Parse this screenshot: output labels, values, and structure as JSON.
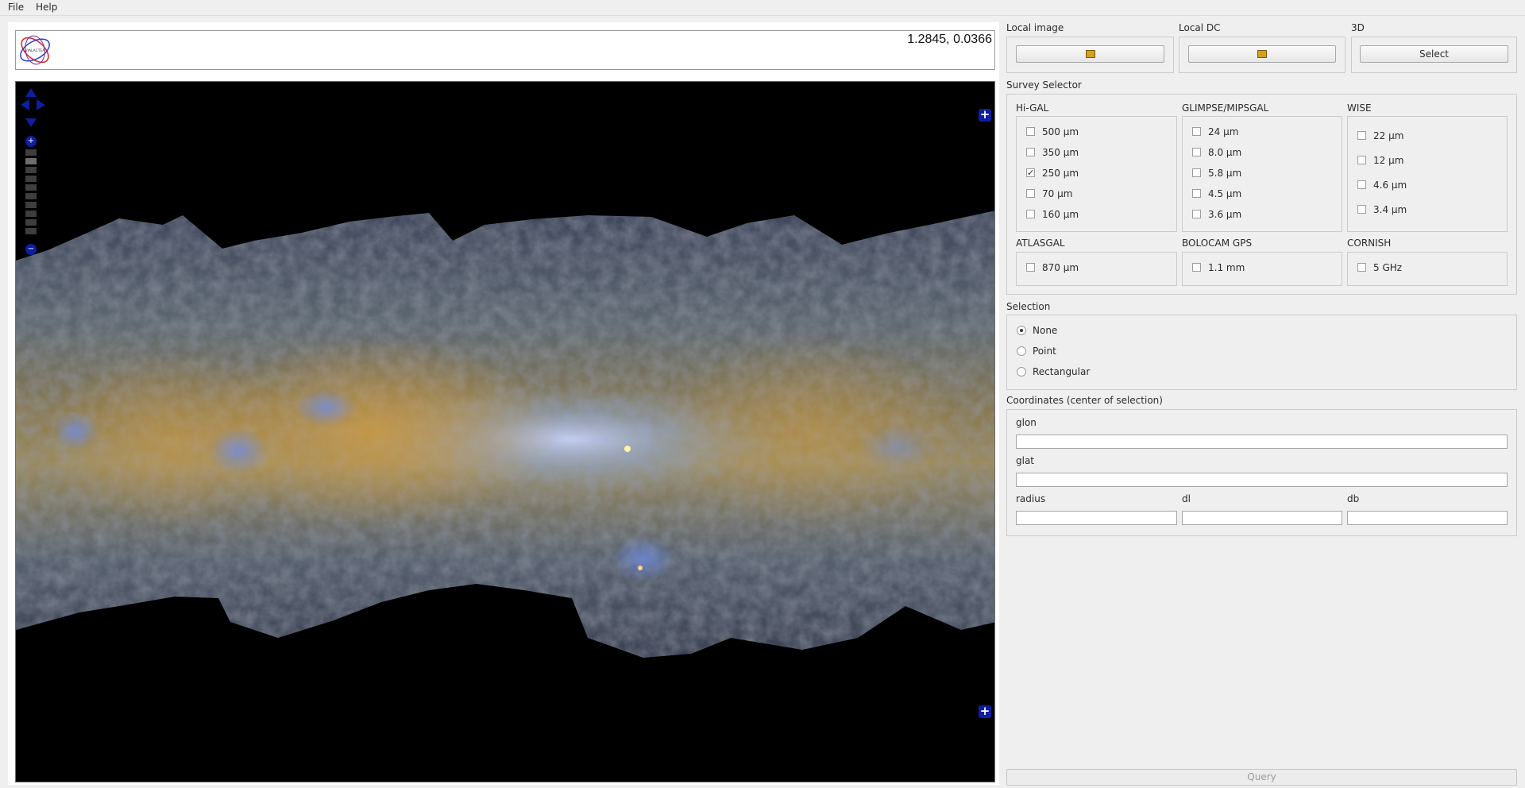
{
  "menu": {
    "file": "File",
    "help": "Help"
  },
  "viewer": {
    "coordinates": "1.2845, 0.0366",
    "logo_text": "VIALACTEA",
    "controls": {
      "zoom_in": "+",
      "zoom_out": "−",
      "side_plus": "+"
    }
  },
  "local_image": {
    "title": "Local image",
    "icon": "folder-open-icon"
  },
  "local_dc": {
    "title": "Local DC",
    "icon": "folder-open-icon"
  },
  "three_d": {
    "title": "3D",
    "button": "Select"
  },
  "survey": {
    "title": "Survey Selector",
    "higal": {
      "title": "Hi-GAL",
      "items": [
        {
          "label": "500 µm",
          "checked": false
        },
        {
          "label": "350 µm",
          "checked": false
        },
        {
          "label": "250 µm",
          "checked": true
        },
        {
          "label": "70 µm",
          "checked": false
        },
        {
          "label": "160 µm",
          "checked": false
        }
      ]
    },
    "glimpse": {
      "title": "GLIMPSE/MIPSGAL",
      "items": [
        {
          "label": "24 µm",
          "checked": false
        },
        {
          "label": "8.0 µm",
          "checked": false
        },
        {
          "label": "5.8 µm",
          "checked": false
        },
        {
          "label": "4.5 µm",
          "checked": false
        },
        {
          "label": "3.6 µm",
          "checked": false
        }
      ]
    },
    "wise": {
      "title": "WISE",
      "items": [
        {
          "label": "22 µm",
          "checked": false
        },
        {
          "label": "12 µm",
          "checked": false
        },
        {
          "label": "4.6 µm",
          "checked": false
        },
        {
          "label": "3.4 µm",
          "checked": false
        }
      ]
    },
    "atlasgal": {
      "title": "ATLASGAL",
      "items": [
        {
          "label": "870 µm",
          "checked": false
        }
      ]
    },
    "bolocam": {
      "title": "BOLOCAM GPS",
      "items": [
        {
          "label": "1.1 mm",
          "checked": false
        }
      ]
    },
    "cornish": {
      "title": "CORNISH",
      "items": [
        {
          "label": "5 GHz",
          "checked": false
        }
      ]
    }
  },
  "selection": {
    "title": "Selection",
    "options": [
      {
        "label": "None",
        "selected": true
      },
      {
        "label": "Point",
        "selected": false
      },
      {
        "label": "Rectangular",
        "selected": false
      }
    ]
  },
  "coords": {
    "title": "Coordinates (center of selection)",
    "glon": {
      "label": "glon",
      "value": ""
    },
    "glat": {
      "label": "glat",
      "value": ""
    },
    "radius": {
      "label": "radius",
      "value": ""
    },
    "dl": {
      "label": "dl",
      "value": ""
    },
    "db": {
      "label": "db",
      "value": ""
    }
  },
  "query_button": "Query",
  "colors": {
    "nav_blue": "#0d1fa0",
    "sky_background": "#000000"
  }
}
